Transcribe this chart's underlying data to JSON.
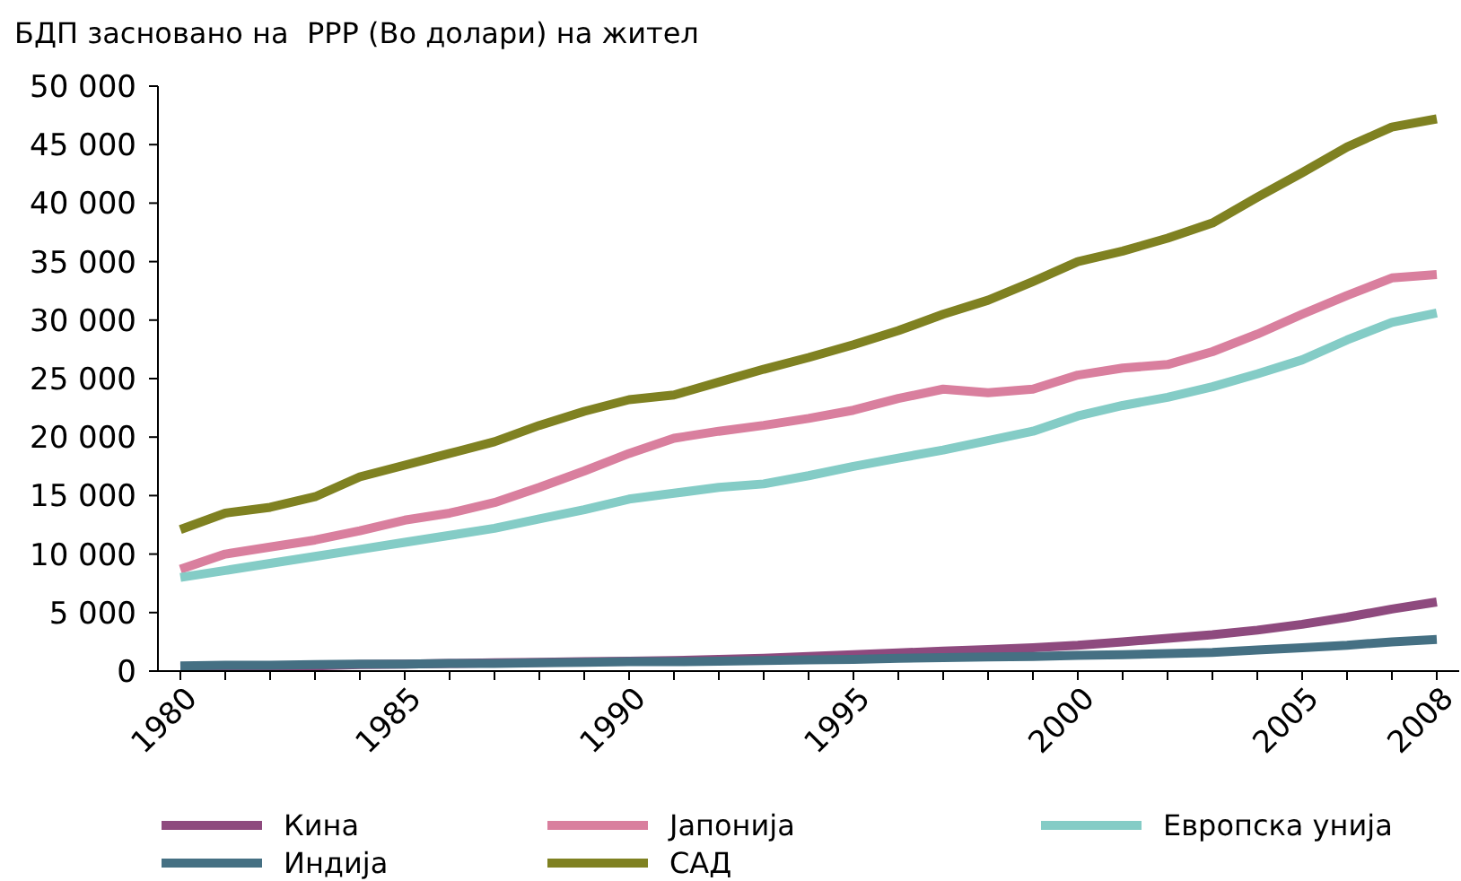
{
  "chart_data": {
    "type": "line",
    "title": "БДП засновано на  РРР (Во долари) на жител",
    "categories": [
      "1980",
      null,
      null,
      null,
      null,
      "1985",
      null,
      null,
      null,
      null,
      "1990",
      null,
      null,
      null,
      null,
      "1995",
      null,
      null,
      null,
      null,
      "2000",
      null,
      null,
      null,
      null,
      "2005",
      null,
      null,
      "2008"
    ],
    "series": [
      {
        "name": "Кина",
        "color": "#8e4a7e",
        "values": [
          300,
          350,
          400,
          450,
          550,
          600,
          650,
          700,
          750,
          800,
          850,
          900,
          1000,
          1100,
          1250,
          1400,
          1550,
          1700,
          1850,
          2000,
          2200,
          2500,
          2800,
          3100,
          3500,
          4000,
          4600,
          5300,
          5900
        ]
      },
      {
        "name": "Јапонија",
        "color": "#d97f9e",
        "values": [
          8700,
          10000,
          10600,
          11200,
          12000,
          12900,
          13500,
          14400,
          15700,
          17100,
          18600,
          19900,
          20500,
          21000,
          21600,
          22300,
          23300,
          24100,
          23800,
          24100,
          25300,
          25900,
          26200,
          27300,
          28800,
          30500,
          32100,
          33600,
          33900
        ]
      },
      {
        "name": "Европска унија",
        "color": "#84ccc6",
        "values": [
          8000,
          8600,
          9200,
          9800,
          10400,
          11000,
          11600,
          12200,
          13000,
          13800,
          14700,
          15200,
          15700,
          16000,
          16700,
          17500,
          18200,
          18900,
          19700,
          20500,
          21800,
          22700,
          23400,
          24300,
          25400,
          26600,
          28300,
          29800,
          30600
        ]
      },
      {
        "name": "Индија",
        "color": "#457083",
        "values": [
          450,
          500,
          500,
          550,
          600,
          600,
          650,
          650,
          700,
          750,
          800,
          800,
          850,
          900,
          950,
          1000,
          1100,
          1150,
          1200,
          1250,
          1350,
          1400,
          1500,
          1600,
          1800,
          2000,
          2200,
          2500,
          2700
        ]
      },
      {
        "name": "САД",
        "color": "#7f8121",
        "values": [
          12100,
          13500,
          14000,
          14900,
          16600,
          17600,
          18600,
          19600,
          21000,
          22200,
          23200,
          23600,
          24700,
          25800,
          26800,
          27900,
          29100,
          30500,
          31700,
          33300,
          35000,
          35900,
          37000,
          38300,
          40500,
          42600,
          44800,
          46500,
          47200
        ]
      }
    ],
    "ylim": [
      0,
      50000
    ],
    "yticks": [
      {
        "value": 0,
        "label": "0"
      },
      {
        "value": 5000,
        "label": "5 000"
      },
      {
        "value": 10000,
        "label": "10 000"
      },
      {
        "value": 15000,
        "label": "15 000"
      },
      {
        "value": 20000,
        "label": "20 000"
      },
      {
        "value": 25000,
        "label": "25 000"
      },
      {
        "value": 30000,
        "label": "30 000"
      },
      {
        "value": 35000,
        "label": "35 000"
      },
      {
        "value": 40000,
        "label": "40 000"
      },
      {
        "value": 45000,
        "label": "45 000"
      },
      {
        "value": 50000,
        "label": "50 000"
      }
    ],
    "legend": "bottom",
    "line_style": "solid",
    "marker": "none",
    "grid": false
  }
}
